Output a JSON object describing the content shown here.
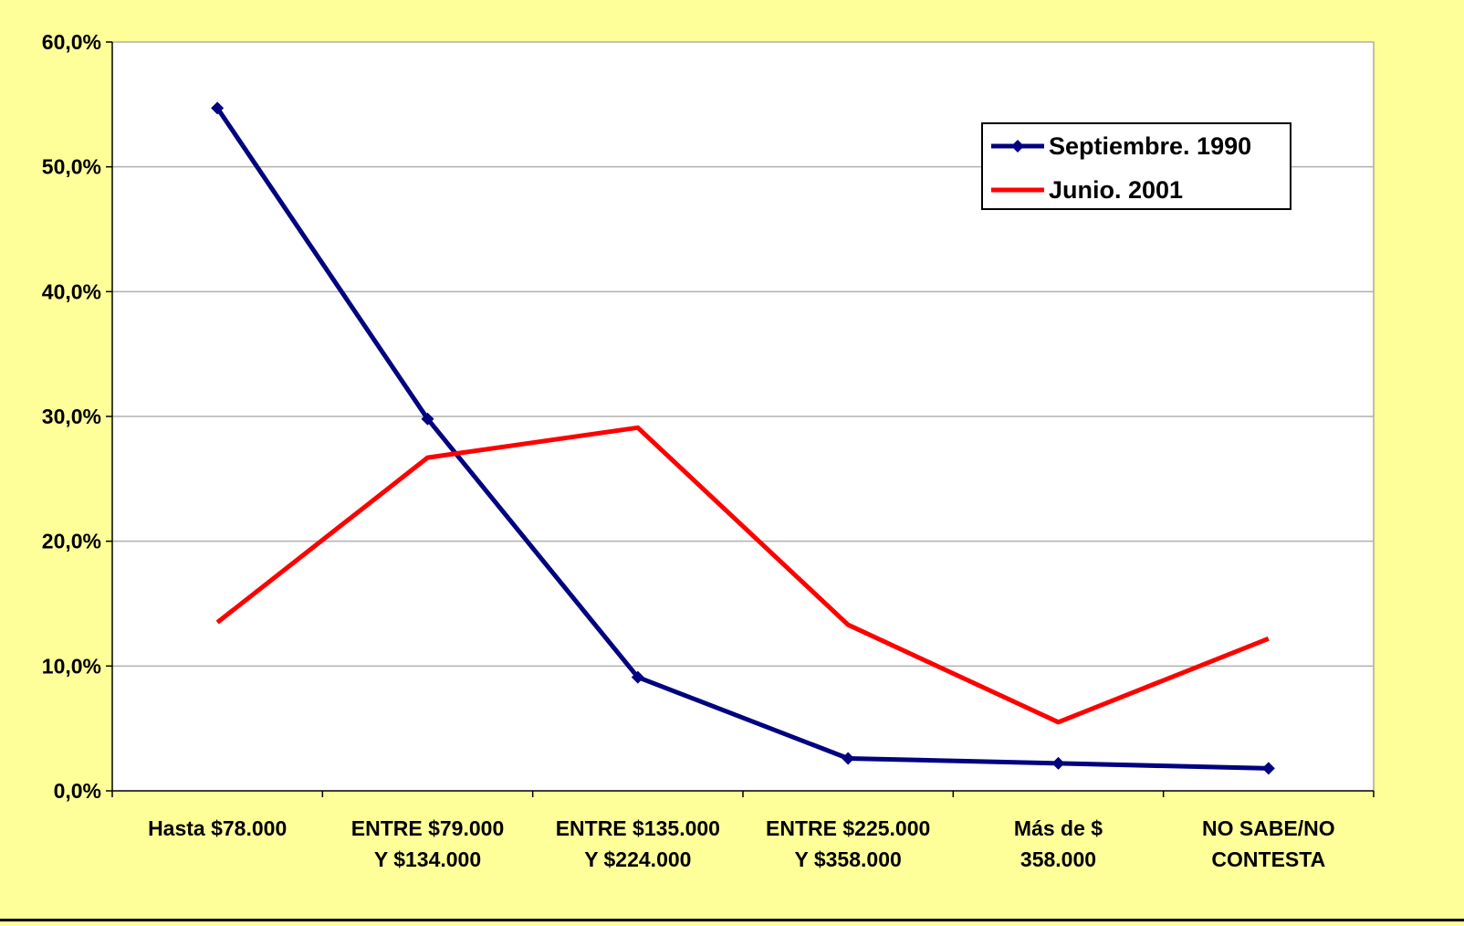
{
  "chart_data": {
    "type": "line",
    "title": "",
    "xlabel": "",
    "ylabel": "",
    "ylim": [
      0,
      60
    ],
    "y_ticks": [
      0,
      10,
      20,
      30,
      40,
      50,
      60
    ],
    "y_tick_labels": [
      "0,0%",
      "10,0%",
      "20,0%",
      "30,0%",
      "40,0%",
      "50,0%",
      "60,0%"
    ],
    "categories": [
      [
        "Hasta $78.000"
      ],
      [
        "ENTRE $79.000",
        "Y $134.000"
      ],
      [
        "ENTRE $135.000",
        "Y $224.000"
      ],
      [
        "ENTRE $225.000",
        "Y $358.000"
      ],
      [
        "Más de $",
        "358.000"
      ],
      [
        "NO SABE/NO",
        "CONTESTA"
      ]
    ],
    "series": [
      {
        "name": "Septiembre. 1990",
        "color": "#000080",
        "marker": "diamond",
        "values": [
          54.7,
          29.8,
          9.1,
          2.6,
          2.2,
          1.8
        ]
      },
      {
        "name": "Junio. 2001",
        "color": "#ff0000",
        "marker": "none",
        "values": [
          13.5,
          26.7,
          29.1,
          13.3,
          5.5,
          12.2
        ]
      }
    ],
    "grid": true,
    "legend_position": "top-right",
    "plot_background": "#ffffff",
    "page_background": "#ffff99"
  }
}
